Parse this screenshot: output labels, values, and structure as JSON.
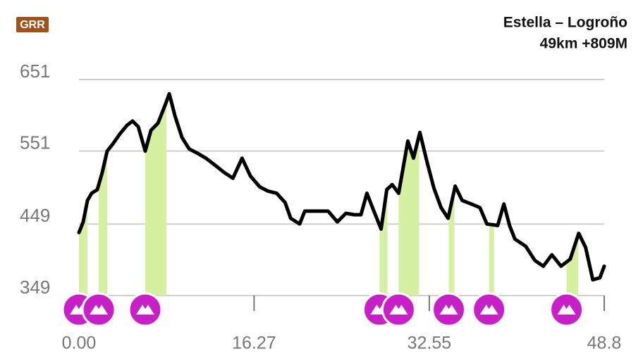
{
  "chart_data": {
    "type": "line",
    "logo": "GRR",
    "title": "Estella – Logroño",
    "subtitle": "49km +809M",
    "x": [
      0,
      0.39,
      0.79,
      1.18,
      1.7,
      2.16,
      2.62,
      3.15,
      3.8,
      4.46,
      4.98,
      5.51,
      6.16,
      6.69,
      7.34,
      8.0,
      8.39,
      8.92,
      9.57,
      10.23,
      11.0,
      11.8,
      12.66,
      13.5,
      14.3,
      15.15,
      15.93,
      16.79,
      17.57,
      18.36,
      19.15,
      19.67,
      20.5,
      20.98,
      21.8,
      23.15,
      24.0,
      24.8,
      25.57,
      26.2,
      26.75,
      27.4,
      28.07,
      28.6,
      29.1,
      29.7,
      30.56,
      31.08,
      31.67,
      32.33,
      32.98,
      33.64,
      34.3,
      34.95,
      35.6,
      36.46,
      37.25,
      37.9,
      38.9,
      39.48,
      40.0,
      40.5,
      41.5,
      42.36,
      43.15,
      43.93,
      44.79,
      45.64,
      46.43,
      47.08,
      47.74,
      48.4,
      48.8
    ],
    "values": [
      437,
      452,
      482,
      492,
      497,
      521,
      551,
      561,
      575,
      587,
      593,
      585,
      551,
      580,
      590,
      615,
      631,
      600,
      570,
      554,
      548,
      541,
      531,
      521,
      513,
      541,
      516,
      501,
      495,
      492,
      479,
      457,
      449,
      467,
      467,
      467,
      452,
      464,
      462,
      462,
      492,
      467,
      442,
      497,
      504,
      492,
      565,
      541,
      577,
      536,
      499,
      472,
      457,
      502,
      482,
      477,
      472,
      449,
      447,
      477,
      447,
      428,
      418,
      398,
      390,
      406,
      390,
      400,
      436,
      416,
      371,
      374,
      390
    ],
    "color": "#000000",
    "climb_color": "#d4f0a0",
    "icon_color": "#c81fc8",
    "climbs": [
      [
        0,
        0.79
      ],
      [
        1.84,
        2.62
      ],
      [
        6.16,
        8.13
      ],
      [
        27.93,
        28.66
      ],
      [
        29.7,
        31.6
      ],
      [
        34.36,
        34.89
      ],
      [
        38.1,
        38.56
      ],
      [
        45.3,
        46.4
      ]
    ],
    "xlim": [
      0,
      48.8
    ],
    "xticks": [
      {
        "value": 0,
        "label": "0.00"
      },
      16.27,
      32.55,
      48.8
    ],
    "ylim": [
      349,
      651
    ],
    "yticks": [
      349,
      449,
      551,
      651
    ],
    "grid": true
  }
}
